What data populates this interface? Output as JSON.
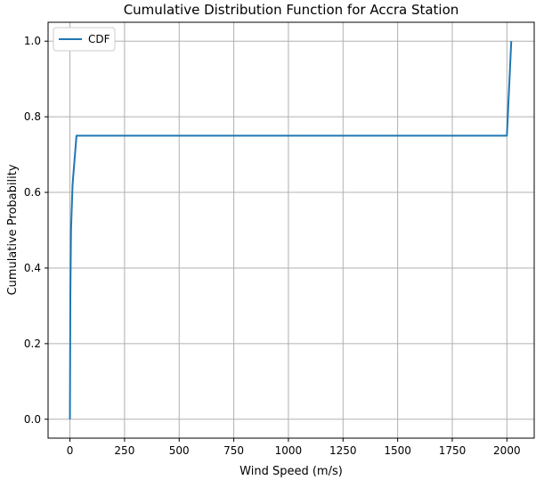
{
  "chart_data": {
    "type": "line",
    "title": "Cumulative Distribution Function for Accra Station",
    "xlabel": "Wind Speed (m/s)",
    "ylabel": "Cumulative Probability",
    "xlim": [
      -100,
      2125
    ],
    "ylim": [
      -0.05,
      1.05
    ],
    "xticks": [
      0,
      250,
      500,
      750,
      1000,
      1250,
      1500,
      1750,
      2000
    ],
    "xtick_labels": [
      "0",
      "250",
      "500",
      "750",
      "1000",
      "1250",
      "1500",
      "1750",
      "2000"
    ],
    "yticks": [
      0.0,
      0.2,
      0.4,
      0.6,
      0.8,
      1.0
    ],
    "ytick_labels": [
      "0.0",
      "0.2",
      "0.4",
      "0.6",
      "0.8",
      "1.0"
    ],
    "grid": true,
    "legend": {
      "position": "top-left"
    },
    "series": [
      {
        "name": "CDF",
        "color": "#1f77b4",
        "x": [
          0,
          2,
          5,
          12,
          30,
          2000,
          2020
        ],
        "y": [
          0.0,
          0.33,
          0.5,
          0.62,
          0.75,
          0.75,
          1.0
        ]
      }
    ]
  }
}
